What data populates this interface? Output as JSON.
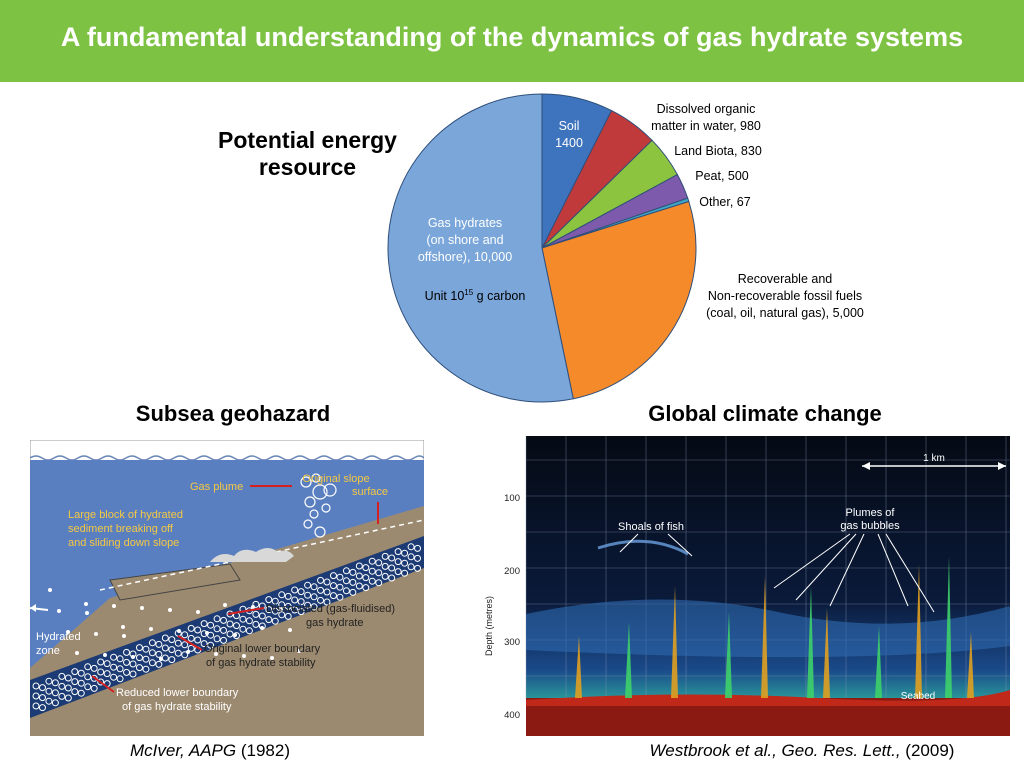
{
  "title": "A fundamental understanding of the dynamics of gas hydrate systems",
  "headings": {
    "energy": "Potential energy resource",
    "geohazard": "Subsea geohazard",
    "climate": "Global climate change"
  },
  "chart_data": {
    "type": "pie",
    "unit_note": "Unit 10",
    "unit_exp": "15",
    "unit_tail": " g carbon",
    "slices": [
      {
        "label_lines": [
          "Soil",
          "1400"
        ],
        "value": 1400,
        "color": "#3e74bd"
      },
      {
        "label_lines": [
          "Dissolved organic",
          "matter in water, 980"
        ],
        "value": 980,
        "color": "#c0393b"
      },
      {
        "label_lines": [
          "Land Biota, 830"
        ],
        "value": 830,
        "color": "#8dc43f"
      },
      {
        "label_lines": [
          "Peat, 500"
        ],
        "value": 500,
        "color": "#7d5aab"
      },
      {
        "label_lines": [
          "Other, 67"
        ],
        "value": 67,
        "color": "#3fa6c6"
      },
      {
        "label_lines": [
          "Recoverable and",
          "Non-recoverable fossil fuels",
          "(coal, oil, natural gas), 5,000"
        ],
        "value": 5000,
        "color": "#f58a2b"
      },
      {
        "label_lines": [
          "Gas hydrates",
          "(on shore and",
          "offshore), 10,000"
        ],
        "value": 10000,
        "color": "#7aa6da"
      }
    ]
  },
  "geo": {
    "gas_plume": "Gas plume",
    "orig_slope": [
      "Original slope",
      "surface"
    ],
    "block": [
      "Large block of hydrated",
      "sediment breaking off",
      "and sliding down slope"
    ],
    "dissociated": [
      "Dissociated (gas-fluidised)",
      "gas hydrate"
    ],
    "orig_lower": [
      "Original lower boundary",
      "of gas hydrate stability"
    ],
    "hydrated": [
      "Hydrated",
      "zone"
    ],
    "reduced": [
      "Reduced lower boundary",
      "of gas hydrate stability"
    ]
  },
  "sonar": {
    "km": "1 km",
    "fish": "Shoals of fish",
    "plumes": [
      "Plumes of",
      "gas bubbles"
    ],
    "seabed": "Seabed",
    "ylabel": "Depth (metres)",
    "ticks": [
      "100",
      "200",
      "300",
      "400"
    ]
  },
  "citations": {
    "left_it": "McIver, AAPG",
    "left_tail": " (1982)",
    "right_it": "Westbrook et al., Geo. Res. Lett.,",
    "right_tail": " (2009)"
  }
}
